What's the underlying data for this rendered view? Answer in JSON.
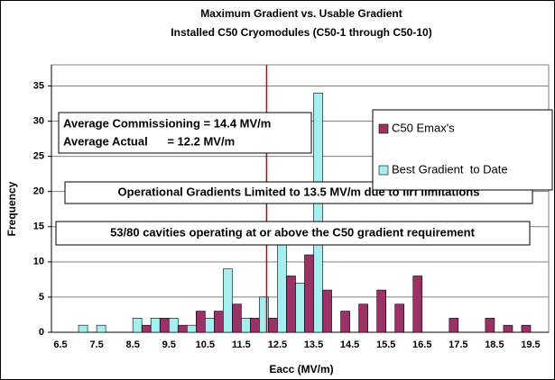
{
  "chart_data": {
    "type": "bar",
    "title": "Maximum Gradient vs. Usable Gradient",
    "subtitle": "Installed C50 Cryomodules (C50-1 through C50-10)",
    "x_label": "Eacc (MV/m)",
    "y_label": "Frequency",
    "categories": [
      "6.5",
      null,
      "7.5",
      null,
      "8.5",
      null,
      "9.5",
      null,
      "10.5",
      null,
      "11.5",
      null,
      "12.5",
      null,
      "13.5",
      null,
      "14.5",
      null,
      "15.5",
      null,
      "16.5",
      null,
      "17.5",
      null,
      "18.5",
      null,
      "19.5"
    ],
    "series": [
      {
        "name": "C50 Emax's",
        "color": "#993366",
        "values": [
          0,
          0,
          0,
          0,
          0,
          1,
          2,
          1,
          3,
          3,
          4,
          2,
          2,
          8,
          11,
          6,
          3,
          4,
          6,
          4,
          8,
          0,
          2,
          0,
          2,
          1,
          1
        ]
      },
      {
        "name": "Best Gradient  to Date",
        "color": "#a6eef0",
        "values": [
          0,
          1,
          1,
          0,
          2,
          2,
          2,
          1,
          2,
          9,
          2,
          5,
          15,
          7,
          34,
          0,
          0,
          0,
          0,
          0,
          0,
          0,
          0,
          0,
          0,
          0,
          0
        ]
      }
    ],
    "ylim": [
      0,
      38
    ],
    "yticks": [
      0,
      5,
      10,
      15,
      20,
      25,
      30,
      35
    ],
    "grid": true,
    "legend": "right",
    "reference_line": {
      "x": 12.2,
      "color": "#cc0000"
    },
    "annotations": [
      "Average Commissioning = 14.4 MV/m",
      "Average Actual      = 12.2 MV/m",
      "Operational Gradients Limited to 13.5 MV/m due to llrf limitations",
      "53/80 cavities operating at or above the C50 gradient requirement"
    ]
  }
}
